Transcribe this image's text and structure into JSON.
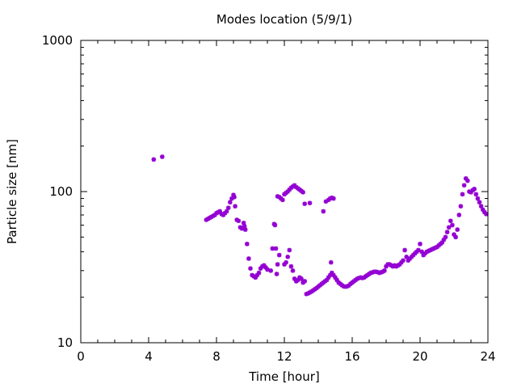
{
  "chart_data": {
    "type": "scatter",
    "title": "Modes location (5/9/1)",
    "xlabel": "Time [hour]",
    "ylabel": "Particle size [nm]",
    "xlim": [
      0,
      24
    ],
    "ylim": [
      10,
      1000
    ],
    "yscale": "log",
    "x_ticks": [
      0,
      4,
      8,
      12,
      16,
      20,
      24
    ],
    "x_tick_labels": [
      "0",
      "4",
      "8",
      "12",
      "16",
      "20",
      "24"
    ],
    "y_ticks": [
      10,
      100,
      1000
    ],
    "y_tick_labels": [
      "10",
      "100",
      "1000"
    ],
    "grid": false,
    "marker_color": "#9400d3",
    "marker": "star",
    "points": [
      [
        4.3,
        163
      ],
      [
        4.8,
        170
      ],
      [
        7.4,
        65
      ],
      [
        7.5,
        66
      ],
      [
        7.6,
        67
      ],
      [
        7.7,
        68
      ],
      [
        7.8,
        69
      ],
      [
        7.9,
        70
      ],
      [
        8.0,
        72
      ],
      [
        8.1,
        73
      ],
      [
        8.2,
        74
      ],
      [
        8.3,
        71
      ],
      [
        8.4,
        70
      ],
      [
        8.5,
        72
      ],
      [
        8.6,
        74
      ],
      [
        8.7,
        78
      ],
      [
        8.8,
        85
      ],
      [
        8.9,
        90
      ],
      [
        9.0,
        95
      ],
      [
        9.05,
        92
      ],
      [
        9.1,
        80
      ],
      [
        9.2,
        65
      ],
      [
        9.3,
        64
      ],
      [
        9.4,
        58
      ],
      [
        9.5,
        57
      ],
      [
        9.6,
        62
      ],
      [
        9.65,
        59
      ],
      [
        9.7,
        56
      ],
      [
        9.8,
        45
      ],
      [
        9.9,
        36
      ],
      [
        10.0,
        31
      ],
      [
        10.1,
        28
      ],
      [
        10.2,
        27.5
      ],
      [
        10.3,
        27
      ],
      [
        10.4,
        28
      ],
      [
        10.5,
        29
      ],
      [
        10.6,
        31
      ],
      [
        10.7,
        32
      ],
      [
        10.8,
        32.5
      ],
      [
        10.9,
        31.5
      ],
      [
        11.0,
        30.5
      ],
      [
        11.2,
        30
      ],
      [
        11.3,
        42
      ],
      [
        11.4,
        61
      ],
      [
        11.45,
        60
      ],
      [
        11.5,
        42
      ],
      [
        11.55,
        28.5
      ],
      [
        11.6,
        33
      ],
      [
        11.7,
        38
      ],
      [
        11.6,
        93
      ],
      [
        11.7,
        92
      ],
      [
        11.8,
        90
      ],
      [
        11.9,
        88
      ],
      [
        12.0,
        96
      ],
      [
        12.1,
        98
      ],
      [
        12.2,
        100
      ],
      [
        12.3,
        103
      ],
      [
        12.4,
        106
      ],
      [
        12.5,
        108
      ],
      [
        12.6,
        110
      ],
      [
        12.7,
        107
      ],
      [
        12.8,
        105
      ],
      [
        12.9,
        103
      ],
      [
        13.0,
        101
      ],
      [
        13.1,
        99
      ],
      [
        13.2,
        83
      ],
      [
        13.5,
        84
      ],
      [
        12.0,
        33
      ],
      [
        12.1,
        34
      ],
      [
        12.2,
        37
      ],
      [
        12.3,
        41
      ],
      [
        12.4,
        32
      ],
      [
        12.5,
        30
      ],
      [
        12.6,
        26.5
      ],
      [
        12.7,
        25.5
      ],
      [
        12.8,
        26
      ],
      [
        12.9,
        27
      ],
      [
        13.0,
        26.5
      ],
      [
        13.1,
        25
      ],
      [
        13.2,
        25.5
      ],
      [
        13.3,
        21
      ],
      [
        13.4,
        21.2
      ],
      [
        13.5,
        21.5
      ],
      [
        13.6,
        21.8
      ],
      [
        13.7,
        22.2
      ],
      [
        13.8,
        22.6
      ],
      [
        13.9,
        23
      ],
      [
        14.0,
        23.5
      ],
      [
        14.1,
        24
      ],
      [
        14.2,
        24.5
      ],
      [
        14.3,
        25
      ],
      [
        14.4,
        25.5
      ],
      [
        14.5,
        26
      ],
      [
        14.6,
        27
      ],
      [
        14.7,
        28
      ],
      [
        14.75,
        34
      ],
      [
        14.8,
        29
      ],
      [
        14.9,
        28
      ],
      [
        15.0,
        27
      ],
      [
        15.1,
        26
      ],
      [
        15.2,
        25
      ],
      [
        15.3,
        24.5
      ],
      [
        15.4,
        24
      ],
      [
        15.5,
        23.6
      ],
      [
        15.6,
        23.5
      ],
      [
        15.7,
        23.6
      ],
      [
        15.8,
        23.9
      ],
      [
        15.9,
        24.5
      ],
      [
        16.0,
        25
      ],
      [
        16.1,
        25.5
      ],
      [
        16.2,
        26
      ],
      [
        16.3,
        26.5
      ],
      [
        16.4,
        26.8
      ],
      [
        16.5,
        27
      ],
      [
        16.6,
        26.8
      ],
      [
        16.7,
        27
      ],
      [
        16.8,
        27.5
      ],
      [
        16.9,
        28
      ],
      [
        17.0,
        28.5
      ],
      [
        17.1,
        29
      ],
      [
        17.2,
        29.2
      ],
      [
        17.3,
        29.5
      ],
      [
        17.4,
        29.5
      ],
      [
        17.5,
        29.3
      ],
      [
        17.6,
        29
      ],
      [
        17.7,
        29.2
      ],
      [
        17.8,
        29.5
      ],
      [
        17.9,
        30
      ],
      [
        18.0,
        32
      ],
      [
        18.1,
        33
      ],
      [
        18.2,
        33
      ],
      [
        18.3,
        32.5
      ],
      [
        18.4,
        32
      ],
      [
        18.5,
        32.5
      ],
      [
        18.6,
        32
      ],
      [
        18.7,
        32.5
      ],
      [
        18.8,
        33
      ],
      [
        18.9,
        34
      ],
      [
        19.0,
        35
      ],
      [
        19.1,
        41
      ],
      [
        19.2,
        37
      ],
      [
        19.3,
        35
      ],
      [
        19.4,
        36
      ],
      [
        19.5,
        37
      ],
      [
        19.6,
        38
      ],
      [
        19.7,
        39
      ],
      [
        19.8,
        40
      ],
      [
        19.9,
        41
      ],
      [
        20.0,
        45
      ],
      [
        20.1,
        40
      ],
      [
        20.2,
        38
      ],
      [
        20.3,
        39
      ],
      [
        20.4,
        40
      ],
      [
        20.5,
        40.5
      ],
      [
        20.6,
        41
      ],
      [
        20.7,
        41.5
      ],
      [
        20.8,
        42
      ],
      [
        20.9,
        42.5
      ],
      [
        21.0,
        43
      ],
      [
        21.1,
        44
      ],
      [
        21.2,
        45
      ],
      [
        21.3,
        46
      ],
      [
        21.4,
        48
      ],
      [
        21.5,
        50
      ],
      [
        21.6,
        54
      ],
      [
        21.7,
        58
      ],
      [
        21.8,
        64
      ],
      [
        21.9,
        60
      ],
      [
        22.0,
        52
      ],
      [
        22.1,
        50
      ],
      [
        22.2,
        56
      ],
      [
        22.3,
        70
      ],
      [
        22.4,
        80
      ],
      [
        22.5,
        96
      ],
      [
        22.6,
        110
      ],
      [
        22.7,
        122
      ],
      [
        22.8,
        118
      ],
      [
        22.9,
        100
      ],
      [
        23.0,
        99
      ],
      [
        23.1,
        102
      ],
      [
        23.2,
        104
      ],
      [
        23.3,
        96
      ],
      [
        23.4,
        90
      ],
      [
        23.5,
        85
      ],
      [
        23.6,
        80
      ],
      [
        23.7,
        76
      ],
      [
        23.8,
        73
      ],
      [
        23.9,
        71
      ],
      [
        14.3,
        74
      ],
      [
        14.45,
        86
      ],
      [
        14.6,
        88
      ],
      [
        14.7,
        90
      ],
      [
        14.8,
        91
      ],
      [
        14.9,
        90
      ]
    ]
  }
}
